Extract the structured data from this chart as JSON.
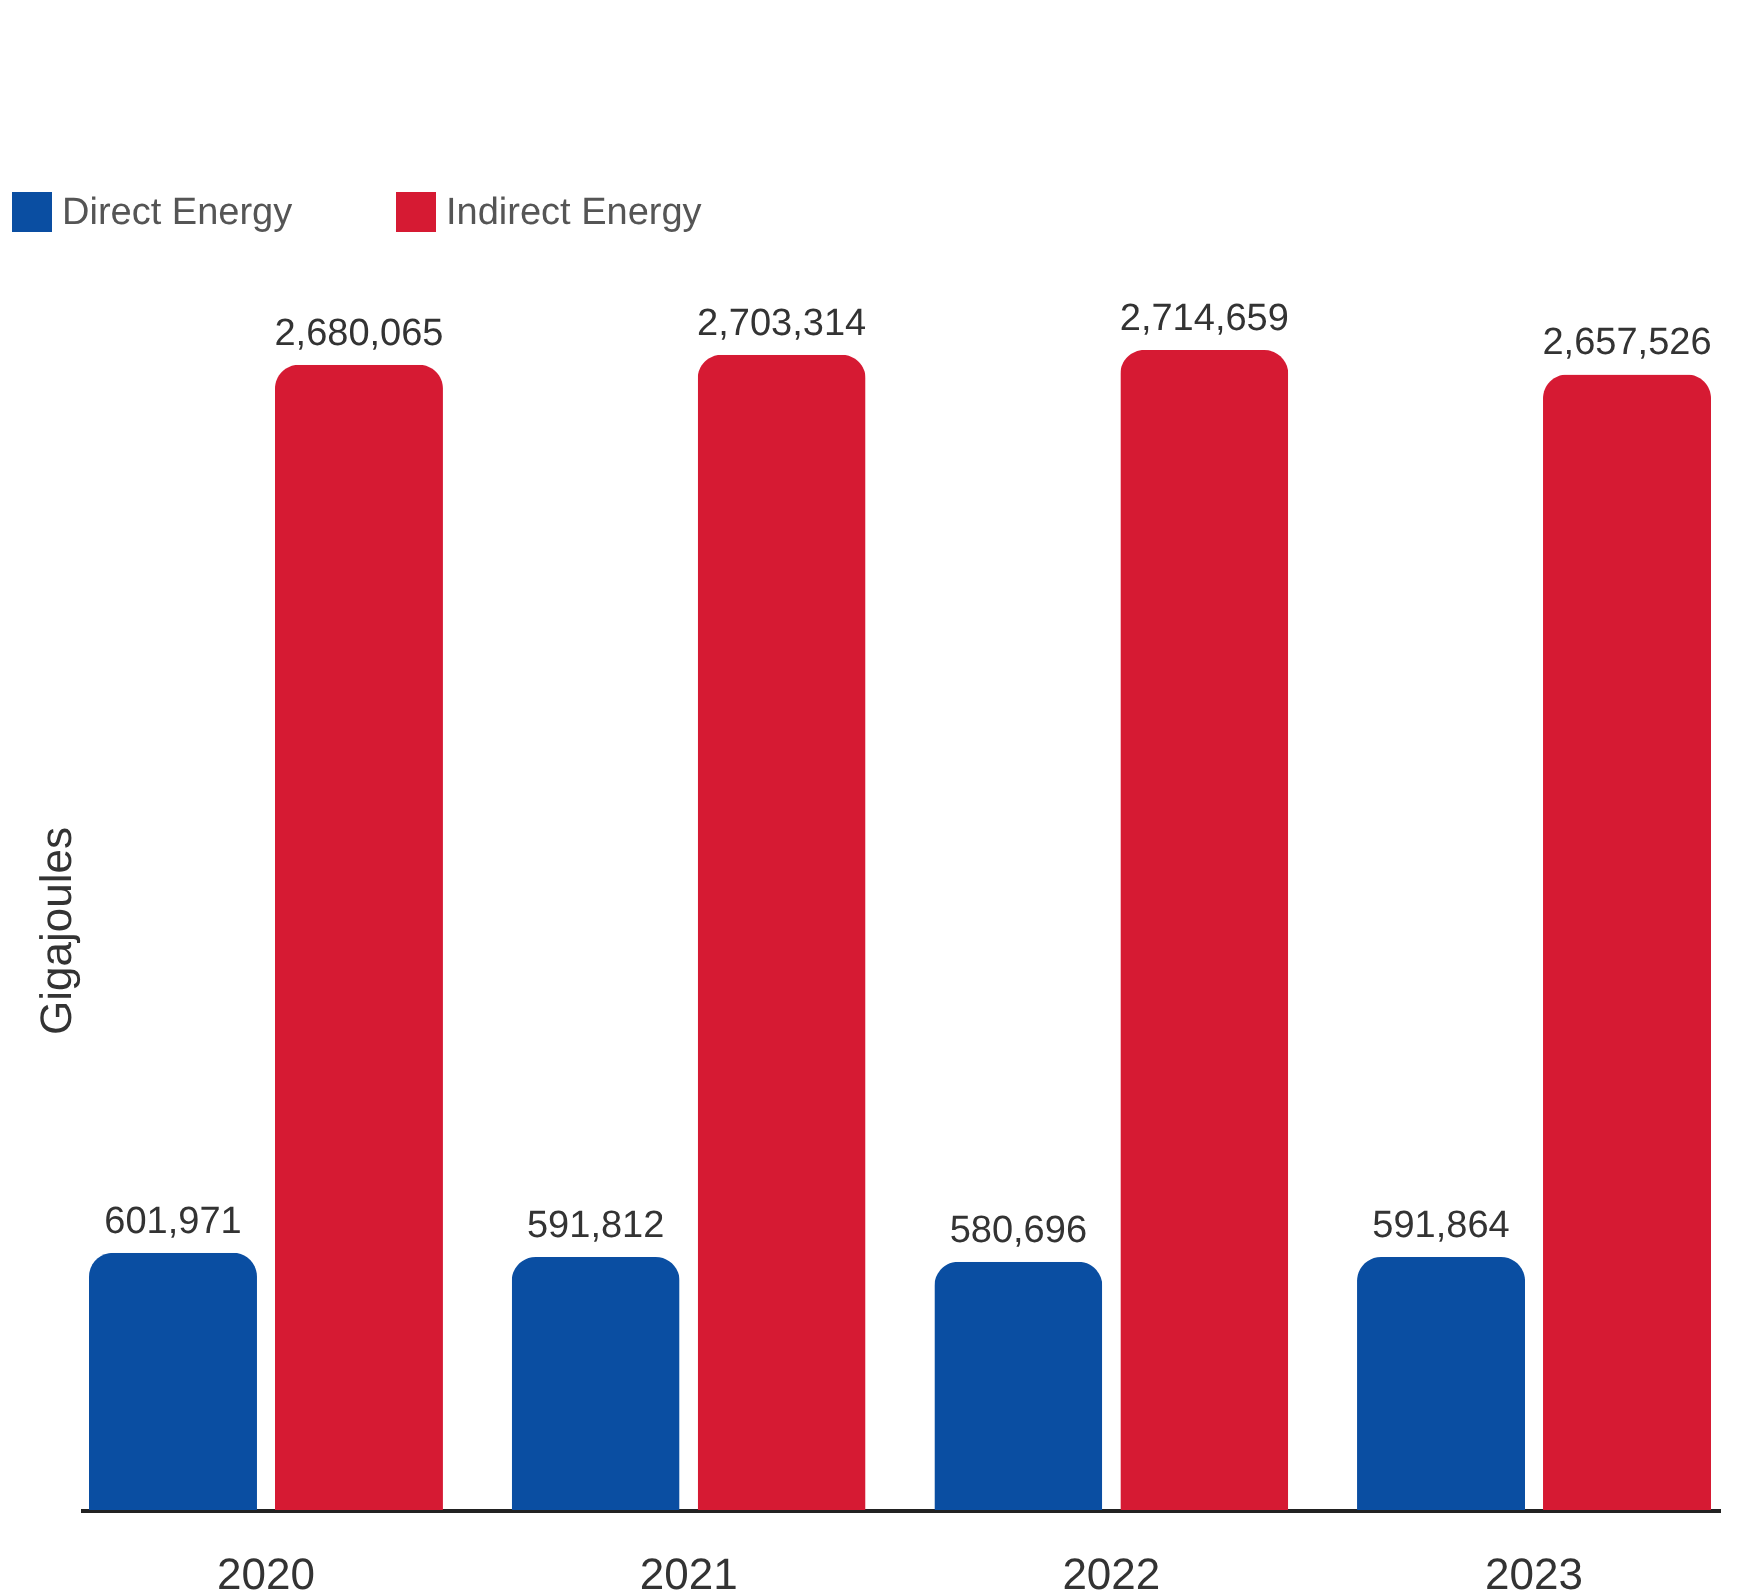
{
  "chart_data": {
    "type": "bar",
    "ylabel": "Gigajoules",
    "categories": [
      "2020",
      "2021",
      "2022",
      "2023"
    ],
    "series": [
      {
        "name": "Direct Energy",
        "color": "#0a4ea2",
        "values": [
          601971,
          591812,
          580696,
          591864
        ],
        "value_labels": [
          "601,971",
          "591,812",
          "580,696",
          "591,864"
        ]
      },
      {
        "name": "Indirect Energy",
        "color": "#d61a33",
        "values": [
          2680065,
          2703314,
          2714659,
          2657526
        ],
        "value_labels": [
          "2,680,065",
          "2,703,314",
          "2,714,659",
          "2,657,526"
        ]
      }
    ],
    "legend": "top left",
    "grid": false
  }
}
